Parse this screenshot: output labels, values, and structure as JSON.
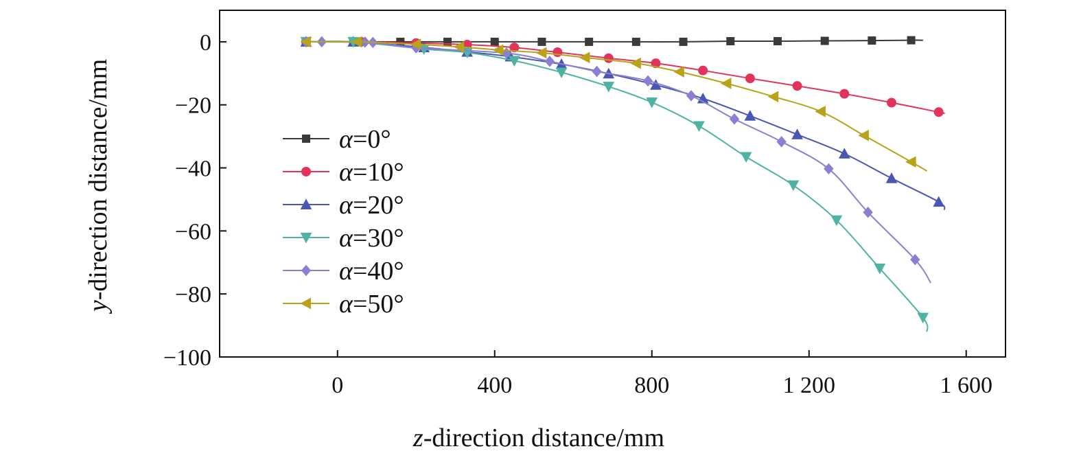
{
  "chart_data": {
    "type": "line",
    "title": "",
    "xlabel": {
      "var": "z",
      "rest": "-direction distance/mm"
    },
    "ylabel": {
      "var": "y",
      "rest": "-direction distance/mm"
    },
    "xlim": [
      -300,
      1700
    ],
    "ylim": [
      -100,
      10
    ],
    "xticks": [
      0,
      400,
      800,
      1200,
      1600
    ],
    "xtick_labels": [
      "0",
      "400",
      "800",
      "1 200",
      "1 600"
    ],
    "yticks": [
      0,
      -20,
      -40,
      -60,
      -80,
      -100
    ],
    "ytick_labels": [
      "0",
      "−20",
      "−40",
      "−60",
      "−80",
      "−100"
    ],
    "legend_position": "left",
    "series": [
      {
        "name": "α=0°",
        "var": "α",
        "value_text": "=0°",
        "color": "#3a3a3a",
        "marker": "square",
        "points": [
          [
            -80,
            0
          ],
          [
            40,
            0
          ],
          [
            160,
            0
          ],
          [
            280,
            0
          ],
          [
            400,
            0
          ],
          [
            520,
            0
          ],
          [
            640,
            0
          ],
          [
            760,
            0
          ],
          [
            880,
            0
          ],
          [
            1000,
            0.2
          ],
          [
            1120,
            0.2
          ],
          [
            1240,
            0.3
          ],
          [
            1360,
            0.4
          ],
          [
            1460,
            0.5
          ],
          [
            1490,
            0.5
          ]
        ]
      },
      {
        "name": "α=10°",
        "var": "α",
        "value_text": "=10°",
        "color": "#e2345a",
        "marker": "circle",
        "points": [
          [
            -80,
            0
          ],
          [
            60,
            0
          ],
          [
            200,
            -0.4
          ],
          [
            330,
            -0.9
          ],
          [
            450,
            -1.8
          ],
          [
            560,
            -3.3
          ],
          [
            690,
            -5.2
          ],
          [
            810,
            -6.8
          ],
          [
            930,
            -9.1
          ],
          [
            1050,
            -11.6
          ],
          [
            1170,
            -14
          ],
          [
            1290,
            -16.5
          ],
          [
            1410,
            -19.3
          ],
          [
            1530,
            -22.3
          ],
          [
            1545,
            -22.8
          ]
        ]
      },
      {
        "name": "α=20°",
        "var": "α",
        "value_text": "=20°",
        "color": "#4a56b3",
        "marker": "triangle-up",
        "points": [
          [
            -80,
            0
          ],
          [
            40,
            0
          ],
          [
            220,
            -1.8
          ],
          [
            330,
            -3.2
          ],
          [
            440,
            -4.7
          ],
          [
            570,
            -7.1
          ],
          [
            690,
            -10.1
          ],
          [
            810,
            -13.7
          ],
          [
            930,
            -18
          ],
          [
            1050,
            -23.5
          ],
          [
            1170,
            -29.4
          ],
          [
            1290,
            -35.5
          ],
          [
            1410,
            -43.3
          ],
          [
            1530,
            -50.8
          ],
          [
            1545,
            -53.3
          ]
        ]
      },
      {
        "name": "α=30°",
        "var": "α",
        "value_text": "=30°",
        "color": "#4fb3a3",
        "marker": "triangle-down",
        "points": [
          [
            -80,
            0
          ],
          [
            40,
            0
          ],
          [
            220,
            -2.3
          ],
          [
            330,
            -3.4
          ],
          [
            450,
            -6
          ],
          [
            570,
            -9.7
          ],
          [
            690,
            -14.2
          ],
          [
            800,
            -19.2
          ],
          [
            920,
            -26.7
          ],
          [
            1040,
            -36.5
          ],
          [
            1160,
            -45.5
          ],
          [
            1270,
            -56.6
          ],
          [
            1380,
            -71.9
          ],
          [
            1490,
            -87.5
          ],
          [
            1500,
            -92
          ]
        ]
      },
      {
        "name": "α=40°",
        "var": "α",
        "value_text": "=40°",
        "color": "#8a7fd2",
        "marker": "diamond",
        "points": [
          [
            -80,
            0
          ],
          [
            -40,
            0
          ],
          [
            70,
            -0.1
          ],
          [
            90,
            -0.2
          ],
          [
            200,
            -1.9
          ],
          [
            430,
            -3.6
          ],
          [
            540,
            -6.2
          ],
          [
            660,
            -9.4
          ],
          [
            790,
            -12.4
          ],
          [
            900,
            -17.1
          ],
          [
            1010,
            -24.5
          ],
          [
            1130,
            -31.7
          ],
          [
            1250,
            -40.3
          ],
          [
            1350,
            -54.1
          ],
          [
            1470,
            -69.1
          ],
          [
            1510,
            -76.5
          ]
        ]
      },
      {
        "name": "α=50°",
        "var": "α",
        "value_text": "=50°",
        "color": "#b8a319",
        "marker": "triangle-left",
        "points": [
          [
            -80,
            0
          ],
          [
            50,
            0
          ],
          [
            200,
            -0.8
          ],
          [
            310,
            -1.6
          ],
          [
            410,
            -2.6
          ],
          [
            520,
            -3.5
          ],
          [
            630,
            -5
          ],
          [
            760,
            -6.8
          ],
          [
            870,
            -9.5
          ],
          [
            990,
            -13.2
          ],
          [
            1110,
            -17.4
          ],
          [
            1230,
            -22.1
          ],
          [
            1340,
            -29.7
          ],
          [
            1460,
            -38.1
          ],
          [
            1500,
            -41
          ]
        ]
      }
    ]
  }
}
